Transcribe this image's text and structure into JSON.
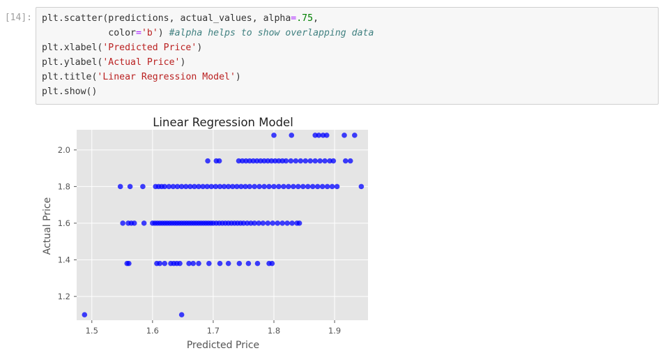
{
  "prompt": "[14]:",
  "code": {
    "line1_a": "plt.scatter(predictions, actual_values, alpha",
    "line1_op": "=",
    "line1_num": ".75",
    "line1_end": ",",
    "line2_a": "            color",
    "line2_op": "=",
    "line2_str": "'b'",
    "line2_end": ") ",
    "line2_cmt": "#alpha helps to show overlapping data",
    "line3_fn": "plt.xlabel(",
    "line3_str": "'Predicted Price'",
    "line3_end": ")",
    "line4_fn": "plt.ylabel(",
    "line4_str": "'Actual Price'",
    "line4_end": ")",
    "line5_fn": "plt.title(",
    "line5_str": "'Linear Regression Model'",
    "line5_end": ")",
    "line6_fn": "plt.show()"
  },
  "chart_data": {
    "type": "scatter",
    "title": "Linear Regression Model",
    "xlabel": "Predicted Price",
    "ylabel": "Actual Price",
    "xlim": [
      1.475,
      1.955
    ],
    "ylim": [
      1.07,
      2.11
    ],
    "xticks": [
      "1.5",
      "1.6",
      "1.7",
      "1.8",
      "1.9"
    ],
    "yticks": [
      "1.2",
      "1.4",
      "1.6",
      "1.8",
      "2.0"
    ],
    "grid": true,
    "color": "#0000ff",
    "alpha": 0.75,
    "points": [
      [
        1.488,
        1.1
      ],
      [
        1.648,
        1.1
      ],
      [
        1.558,
        1.38
      ],
      [
        1.561,
        1.38
      ],
      [
        1.607,
        1.38
      ],
      [
        1.612,
        1.38
      ],
      [
        1.62,
        1.38
      ],
      [
        1.63,
        1.38
      ],
      [
        1.635,
        1.38
      ],
      [
        1.64,
        1.38
      ],
      [
        1.645,
        1.38
      ],
      [
        1.66,
        1.38
      ],
      [
        1.667,
        1.38
      ],
      [
        1.676,
        1.38
      ],
      [
        1.693,
        1.38
      ],
      [
        1.711,
        1.38
      ],
      [
        1.725,
        1.38
      ],
      [
        1.743,
        1.38
      ],
      [
        1.758,
        1.38
      ],
      [
        1.773,
        1.38
      ],
      [
        1.792,
        1.38
      ],
      [
        1.797,
        1.38
      ],
      [
        1.551,
        1.6
      ],
      [
        1.56,
        1.6
      ],
      [
        1.565,
        1.6
      ],
      [
        1.57,
        1.6
      ],
      [
        1.586,
        1.6
      ],
      [
        1.6,
        1.6
      ],
      [
        1.604,
        1.6
      ],
      [
        1.608,
        1.6
      ],
      [
        1.612,
        1.6
      ],
      [
        1.616,
        1.6
      ],
      [
        1.62,
        1.6
      ],
      [
        1.624,
        1.6
      ],
      [
        1.628,
        1.6
      ],
      [
        1.632,
        1.6
      ],
      [
        1.636,
        1.6
      ],
      [
        1.64,
        1.6
      ],
      [
        1.644,
        1.6
      ],
      [
        1.648,
        1.6
      ],
      [
        1.652,
        1.6
      ],
      [
        1.656,
        1.6
      ],
      [
        1.66,
        1.6
      ],
      [
        1.664,
        1.6
      ],
      [
        1.668,
        1.6
      ],
      [
        1.672,
        1.6
      ],
      [
        1.676,
        1.6
      ],
      [
        1.68,
        1.6
      ],
      [
        1.684,
        1.6
      ],
      [
        1.688,
        1.6
      ],
      [
        1.692,
        1.6
      ],
      [
        1.696,
        1.6
      ],
      [
        1.7,
        1.6
      ],
      [
        1.705,
        1.6
      ],
      [
        1.71,
        1.6
      ],
      [
        1.715,
        1.6
      ],
      [
        1.72,
        1.6
      ],
      [
        1.725,
        1.6
      ],
      [
        1.73,
        1.6
      ],
      [
        1.735,
        1.6
      ],
      [
        1.74,
        1.6
      ],
      [
        1.745,
        1.6
      ],
      [
        1.75,
        1.6
      ],
      [
        1.756,
        1.6
      ],
      [
        1.762,
        1.6
      ],
      [
        1.768,
        1.6
      ],
      [
        1.775,
        1.6
      ],
      [
        1.782,
        1.6
      ],
      [
        1.79,
        1.6
      ],
      [
        1.798,
        1.6
      ],
      [
        1.806,
        1.6
      ],
      [
        1.814,
        1.6
      ],
      [
        1.822,
        1.6
      ],
      [
        1.83,
        1.6
      ],
      [
        1.838,
        1.6
      ],
      [
        1.842,
        1.6
      ],
      [
        1.547,
        1.8
      ],
      [
        1.563,
        1.8
      ],
      [
        1.584,
        1.8
      ],
      [
        1.605,
        1.8
      ],
      [
        1.61,
        1.8
      ],
      [
        1.615,
        1.8
      ],
      [
        1.62,
        1.8
      ],
      [
        1.627,
        1.8
      ],
      [
        1.634,
        1.8
      ],
      [
        1.641,
        1.8
      ],
      [
        1.648,
        1.8
      ],
      [
        1.655,
        1.8
      ],
      [
        1.662,
        1.8
      ],
      [
        1.669,
        1.8
      ],
      [
        1.676,
        1.8
      ],
      [
        1.683,
        1.8
      ],
      [
        1.69,
        1.8
      ],
      [
        1.697,
        1.8
      ],
      [
        1.704,
        1.8
      ],
      [
        1.711,
        1.8
      ],
      [
        1.718,
        1.8
      ],
      [
        1.725,
        1.8
      ],
      [
        1.732,
        1.8
      ],
      [
        1.739,
        1.8
      ],
      [
        1.746,
        1.8
      ],
      [
        1.753,
        1.8
      ],
      [
        1.76,
        1.8
      ],
      [
        1.768,
        1.8
      ],
      [
        1.776,
        1.8
      ],
      [
        1.784,
        1.8
      ],
      [
        1.792,
        1.8
      ],
      [
        1.8,
        1.8
      ],
      [
        1.808,
        1.8
      ],
      [
        1.816,
        1.8
      ],
      [
        1.824,
        1.8
      ],
      [
        1.832,
        1.8
      ],
      [
        1.84,
        1.8
      ],
      [
        1.848,
        1.8
      ],
      [
        1.856,
        1.8
      ],
      [
        1.864,
        1.8
      ],
      [
        1.872,
        1.8
      ],
      [
        1.88,
        1.8
      ],
      [
        1.888,
        1.8
      ],
      [
        1.896,
        1.8
      ],
      [
        1.904,
        1.8
      ],
      [
        1.944,
        1.8
      ],
      [
        1.691,
        1.94
      ],
      [
        1.705,
        1.94
      ],
      [
        1.71,
        1.94
      ],
      [
        1.742,
        1.94
      ],
      [
        1.748,
        1.94
      ],
      [
        1.754,
        1.94
      ],
      [
        1.76,
        1.94
      ],
      [
        1.766,
        1.94
      ],
      [
        1.772,
        1.94
      ],
      [
        1.778,
        1.94
      ],
      [
        1.784,
        1.94
      ],
      [
        1.79,
        1.94
      ],
      [
        1.796,
        1.94
      ],
      [
        1.802,
        1.94
      ],
      [
        1.808,
        1.94
      ],
      [
        1.814,
        1.94
      ],
      [
        1.82,
        1.94
      ],
      [
        1.828,
        1.94
      ],
      [
        1.836,
        1.94
      ],
      [
        1.844,
        1.94
      ],
      [
        1.852,
        1.94
      ],
      [
        1.86,
        1.94
      ],
      [
        1.868,
        1.94
      ],
      [
        1.876,
        1.94
      ],
      [
        1.884,
        1.94
      ],
      [
        1.892,
        1.94
      ],
      [
        1.898,
        1.94
      ],
      [
        1.918,
        1.94
      ],
      [
        1.926,
        1.94
      ],
      [
        1.8,
        2.08
      ],
      [
        1.829,
        2.08
      ],
      [
        1.868,
        2.08
      ],
      [
        1.874,
        2.08
      ],
      [
        1.881,
        2.08
      ],
      [
        1.887,
        2.08
      ],
      [
        1.916,
        2.08
      ],
      [
        1.933,
        2.08
      ]
    ]
  }
}
